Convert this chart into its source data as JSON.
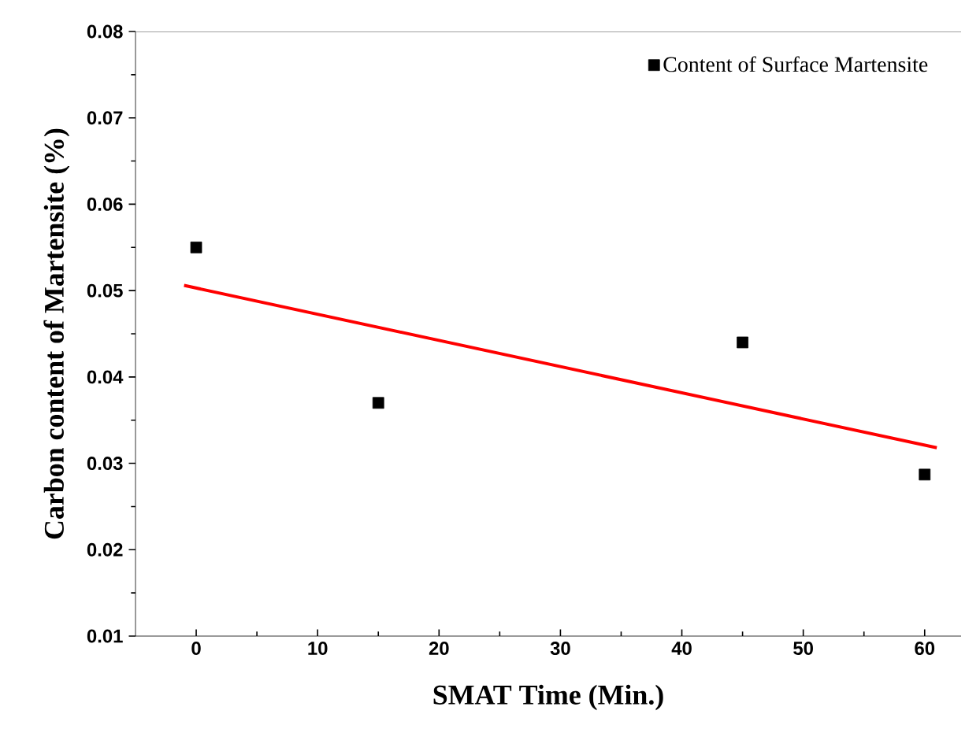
{
  "chart_data": {
    "type": "scatter",
    "xlabel": "SMAT Time (Min.)",
    "ylabel": "Carbon content of Martensite (%)",
    "xlim": [
      -5,
      63
    ],
    "ylim": [
      0.01,
      0.08
    ],
    "xticks": [
      0,
      10,
      20,
      30,
      40,
      50,
      60
    ],
    "yticks": [
      0.01,
      0.02,
      0.03,
      0.04,
      0.05,
      0.06,
      0.07,
      0.08
    ],
    "legend": "top right",
    "grid": false,
    "series": [
      {
        "name": "Content of Surface Martensite",
        "marker": "square",
        "color": "#000000",
        "x": [
          0,
          15,
          45,
          60
        ],
        "values": [
          0.055,
          0.037,
          0.044,
          0.0287
        ]
      },
      {
        "type": "line",
        "line_style": "solid",
        "marker": "none",
        "color": "#ff0000",
        "x": [
          -1,
          61
        ],
        "values": [
          0.0506,
          0.0318
        ]
      }
    ]
  }
}
